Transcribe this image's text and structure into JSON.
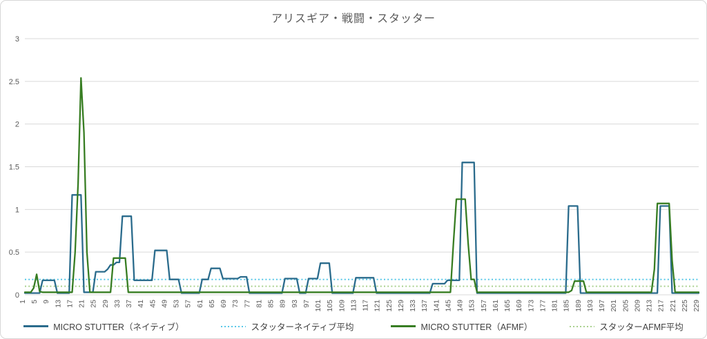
{
  "title": "アリスギア・戦闘・スタッター",
  "colors": {
    "native": "#2A6B8C",
    "afmf": "#377D22",
    "native_avg": "#57C7E8",
    "afmf_avg": "#A9D08E",
    "grid": "#D9D9D9",
    "axis_text": "#595959",
    "legend_text": "#404040"
  },
  "legend": {
    "items": [
      {
        "label": "MICRO STUTTER（ネイティブ）",
        "style": "solid",
        "color_key": "native"
      },
      {
        "label": "スタッターネイティブ平均",
        "style": "dotted",
        "color_key": "native_avg"
      },
      {
        "label": "MICRO STUTTER（AFMF）",
        "style": "solid",
        "color_key": "afmf"
      },
      {
        "label": "スタッターAFMF平均",
        "style": "dotted",
        "color_key": "afmf_avg"
      }
    ]
  },
  "chart_data": {
    "type": "line",
    "title": "アリスギア・戦闘・スタッター",
    "xlabel": "",
    "ylabel": "",
    "x_start": 1,
    "x_end": 229,
    "xlim": [
      1,
      229
    ],
    "ylim": [
      0,
      3
    ],
    "grid": true,
    "legend_position": "bottom",
    "y_ticks": [
      "0",
      "0.5",
      "1",
      "1.5",
      "2",
      "2.5",
      "3"
    ],
    "x_ticks": [
      1,
      5,
      9,
      13,
      17,
      21,
      25,
      29,
      33,
      37,
      41,
      45,
      49,
      53,
      57,
      61,
      65,
      69,
      73,
      77,
      81,
      85,
      89,
      93,
      97,
      101,
      105,
      109,
      113,
      117,
      121,
      125,
      129,
      133,
      137,
      141,
      145,
      149,
      153,
      157,
      161,
      165,
      169,
      173,
      177,
      181,
      185,
      189,
      193,
      197,
      201,
      205,
      209,
      213,
      217,
      221,
      225,
      229
    ],
    "series": [
      {
        "name": "MICRO STUTTER（ネイティブ）",
        "color_key": "native",
        "style": "solid",
        "values": [
          0.02,
          0.02,
          0.02,
          0.02,
          0.02,
          0.02,
          0.17,
          0.17,
          0.17,
          0.17,
          0.17,
          0.02,
          0.02,
          0.02,
          0.02,
          0.02,
          1.17,
          1.17,
          1.17,
          1.17,
          0.03,
          0.03,
          0.03,
          0.03,
          0.27,
          0.27,
          0.27,
          0.27,
          0.3,
          0.35,
          0.35,
          0.38,
          0.38,
          0.92,
          0.92,
          0.92,
          0.92,
          0.17,
          0.17,
          0.17,
          0.17,
          0.17,
          0.17,
          0.17,
          0.52,
          0.52,
          0.52,
          0.52,
          0.52,
          0.18,
          0.18,
          0.18,
          0.18,
          0.02,
          0.02,
          0.02,
          0.02,
          0.02,
          0.02,
          0.02,
          0.18,
          0.18,
          0.18,
          0.31,
          0.31,
          0.31,
          0.31,
          0.19,
          0.19,
          0.19,
          0.19,
          0.19,
          0.19,
          0.21,
          0.21,
          0.21,
          0.02,
          0.02,
          0.02,
          0.02,
          0.02,
          0.02,
          0.02,
          0.02,
          0.02,
          0.02,
          0.02,
          0.02,
          0.19,
          0.19,
          0.19,
          0.19,
          0.19,
          0.02,
          0.02,
          0.02,
          0.19,
          0.19,
          0.19,
          0.19,
          0.37,
          0.37,
          0.37,
          0.37,
          0.02,
          0.02,
          0.02,
          0.02,
          0.02,
          0.02,
          0.02,
          0.02,
          0.2,
          0.2,
          0.2,
          0.2,
          0.2,
          0.2,
          0.2,
          0.02,
          0.02,
          0.02,
          0.02,
          0.02,
          0.02,
          0.02,
          0.02,
          0.02,
          0.02,
          0.02,
          0.02,
          0.02,
          0.02,
          0.02,
          0.02,
          0.02,
          0.02,
          0.02,
          0.13,
          0.13,
          0.13,
          0.13,
          0.13,
          0.17,
          0.17,
          0.17,
          0.17,
          0.17,
          1.55,
          1.55,
          1.55,
          1.55,
          1.55,
          0.02,
          0.02,
          0.02,
          0.02,
          0.02,
          0.02,
          0.02,
          0.02,
          0.02,
          0.02,
          0.02,
          0.02,
          0.02,
          0.02,
          0.02,
          0.02,
          0.02,
          0.02,
          0.02,
          0.02,
          0.02,
          0.02,
          0.02,
          0.02,
          0.02,
          0.02,
          0.02,
          0.02,
          0.02,
          0.02,
          0.02,
          1.04,
          1.04,
          1.04,
          1.04,
          0.02,
          0.02,
          0.02,
          0.02,
          0.02,
          0.02,
          0.02,
          0.02,
          0.02,
          0.02,
          0.02,
          0.02,
          0.02,
          0.02,
          0.02,
          0.02,
          0.02,
          0.02,
          0.02,
          0.02,
          0.02,
          0.02,
          0.02,
          0.02,
          0.02,
          0.02,
          0.02,
          1.04,
          1.04,
          1.04,
          1.04,
          0.02,
          0.02,
          0.02,
          0.02,
          0.02,
          0.02,
          0.02,
          0.02,
          0.02,
          0.02
        ]
      },
      {
        "name": "MICRO STUTTER（AFMF）",
        "color_key": "afmf",
        "style": "solid",
        "values": [
          0.03,
          0.03,
          0.03,
          0.08,
          0.24,
          0.04,
          0.03,
          0.03,
          0.03,
          0.03,
          0.03,
          0.03,
          0.03,
          0.03,
          0.03,
          0.03,
          0.03,
          0.5,
          1.3,
          2.54,
          1.9,
          0.5,
          0.03,
          0.03,
          0.03,
          0.03,
          0.03,
          0.03,
          0.03,
          0.03,
          0.43,
          0.43,
          0.43,
          0.43,
          0.43,
          0.03,
          0.03,
          0.03,
          0.03,
          0.03,
          0.03,
          0.03,
          0.03,
          0.03,
          0.03,
          0.03,
          0.03,
          0.03,
          0.03,
          0.03,
          0.03,
          0.03,
          0.03,
          0.03,
          0.03,
          0.03,
          0.03,
          0.03,
          0.03,
          0.03,
          0.03,
          0.03,
          0.03,
          0.03,
          0.03,
          0.03,
          0.03,
          0.03,
          0.03,
          0.03,
          0.03,
          0.03,
          0.03,
          0.03,
          0.03,
          0.03,
          0.03,
          0.03,
          0.03,
          0.03,
          0.03,
          0.03,
          0.03,
          0.03,
          0.03,
          0.03,
          0.03,
          0.03,
          0.03,
          0.03,
          0.03,
          0.03,
          0.03,
          0.03,
          0.03,
          0.03,
          0.03,
          0.03,
          0.03,
          0.03,
          0.03,
          0.03,
          0.03,
          0.03,
          0.03,
          0.03,
          0.03,
          0.03,
          0.03,
          0.03,
          0.03,
          0.03,
          0.03,
          0.03,
          0.03,
          0.03,
          0.03,
          0.03,
          0.03,
          0.03,
          0.03,
          0.03,
          0.03,
          0.03,
          0.03,
          0.03,
          0.03,
          0.03,
          0.03,
          0.03,
          0.03,
          0.03,
          0.03,
          0.03,
          0.03,
          0.03,
          0.03,
          0.03,
          0.03,
          0.03,
          0.03,
          0.03,
          0.03,
          0.03,
          0.03,
          0.6,
          1.12,
          1.12,
          1.12,
          1.12,
          0.6,
          0.18,
          0.18,
          0.03,
          0.03,
          0.03,
          0.03,
          0.03,
          0.03,
          0.03,
          0.03,
          0.03,
          0.03,
          0.03,
          0.03,
          0.03,
          0.03,
          0.03,
          0.03,
          0.03,
          0.03,
          0.03,
          0.03,
          0.03,
          0.03,
          0.03,
          0.03,
          0.03,
          0.03,
          0.03,
          0.03,
          0.03,
          0.03,
          0.03,
          0.03,
          0.05,
          0.16,
          0.16,
          0.16,
          0.16,
          0.03,
          0.03,
          0.03,
          0.03,
          0.03,
          0.03,
          0.03,
          0.03,
          0.03,
          0.03,
          0.03,
          0.03,
          0.03,
          0.03,
          0.03,
          0.03,
          0.03,
          0.03,
          0.03,
          0.03,
          0.03,
          0.03,
          0.03,
          0.3,
          1.07,
          1.07,
          1.07,
          1.07,
          1.07,
          0.4,
          0.03,
          0.03,
          0.03,
          0.03,
          0.03,
          0.03,
          0.03,
          0.03,
          0.03
        ]
      },
      {
        "name": "スタッターネイティブ平均",
        "color_key": "native_avg",
        "style": "dotted",
        "avg_value": 0.18
      },
      {
        "name": "スタッターAFMF平均",
        "color_key": "afmf_avg",
        "style": "dotted",
        "avg_value": 0.1
      }
    ]
  }
}
